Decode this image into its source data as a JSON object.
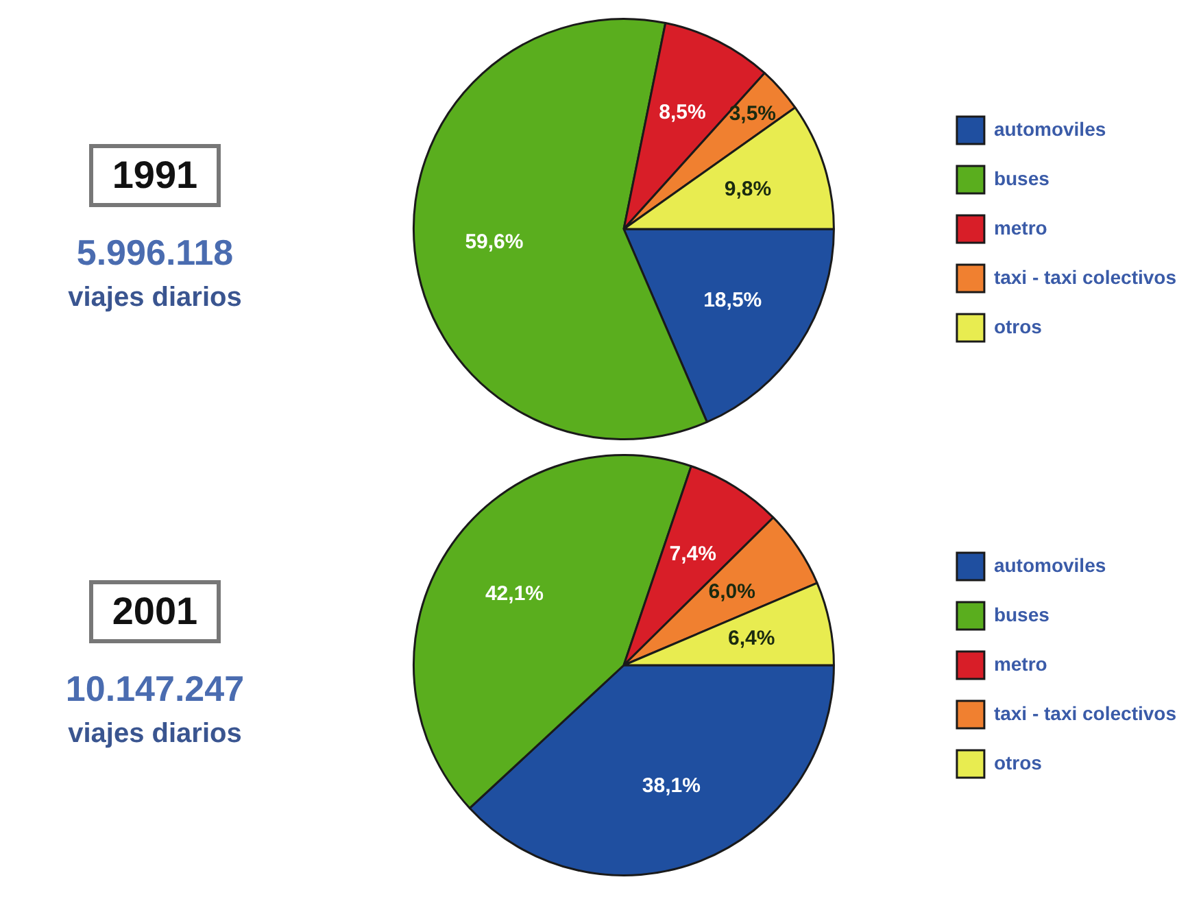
{
  "chart_data": [
    {
      "type": "pie",
      "title": "1991",
      "subtitle": "5.996.118",
      "annotations": [
        "viajes diarios"
      ],
      "categories": [
        "automoviles",
        "buses",
        "metro",
        "taxi - taxi colectivos",
        "otros"
      ],
      "values": [
        18.5,
        59.6,
        8.5,
        3.5,
        9.8
      ],
      "value_labels": [
        "18,5%",
        "59,6%",
        "8,5%",
        "3,5%",
        "9,8%"
      ],
      "colors": [
        "#1f4fa0",
        "#5aae1e",
        "#d81e28",
        "#f08030",
        "#e8ec50"
      ],
      "legend": "right"
    },
    {
      "type": "pie",
      "title": "2001",
      "subtitle": "10.147.247",
      "annotations": [
        "viajes diarios"
      ],
      "categories": [
        "automoviles",
        "buses",
        "metro",
        "taxi - taxi colectivos",
        "otros"
      ],
      "values": [
        38.1,
        42.1,
        7.4,
        6.0,
        6.4
      ],
      "value_labels": [
        "38,1%",
        "42,1%",
        "7,4%",
        "6,0%",
        "6,4%"
      ],
      "colors": [
        "#1f4fa0",
        "#5aae1e",
        "#d81e28",
        "#f08030",
        "#e8ec50"
      ],
      "legend": "right"
    }
  ]
}
